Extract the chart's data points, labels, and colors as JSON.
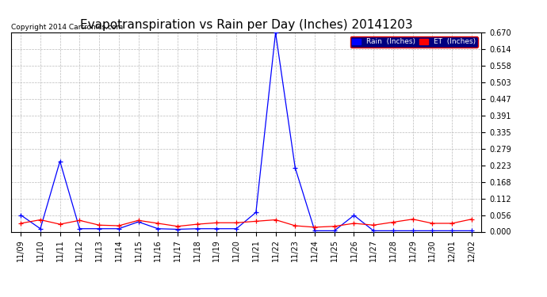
{
  "title": "Evapotranspiration vs Rain per Day (Inches) 20141203",
  "copyright": "Copyright 2014 Cartronics.com",
  "x_labels": [
    "11/09",
    "11/10",
    "11/11",
    "11/12",
    "11/13",
    "11/14",
    "11/15",
    "11/16",
    "11/17",
    "11/18",
    "11/19",
    "11/20",
    "11/21",
    "11/22",
    "11/23",
    "11/24",
    "11/25",
    "11/26",
    "11/27",
    "11/28",
    "11/29",
    "11/30",
    "12/01",
    "12/02"
  ],
  "rain_values": [
    0.056,
    0.01,
    0.237,
    0.01,
    0.01,
    0.01,
    0.033,
    0.01,
    0.008,
    0.01,
    0.01,
    0.01,
    0.065,
    0.67,
    0.215,
    0.003,
    0.003,
    0.055,
    0.003,
    0.003,
    0.003,
    0.003,
    0.003,
    0.003
  ],
  "et_values": [
    0.028,
    0.04,
    0.025,
    0.038,
    0.022,
    0.02,
    0.038,
    0.028,
    0.018,
    0.025,
    0.03,
    0.03,
    0.035,
    0.04,
    0.02,
    0.015,
    0.018,
    0.028,
    0.022,
    0.032,
    0.042,
    0.028,
    0.028,
    0.042
  ],
  "rain_color": "#0000ff",
  "et_color": "#ff0000",
  "bg_color": "#ffffff",
  "grid_color": "#bbbbbb",
  "ylim": [
    0.0,
    0.67
  ],
  "yticks": [
    0.0,
    0.056,
    0.112,
    0.168,
    0.223,
    0.279,
    0.335,
    0.391,
    0.447,
    0.503,
    0.558,
    0.614,
    0.67
  ],
  "legend_rain_label": "Rain  (Inches)",
  "legend_et_label": "ET  (Inches)",
  "title_fontsize": 11,
  "tick_fontsize": 7,
  "copyright_fontsize": 6.5
}
